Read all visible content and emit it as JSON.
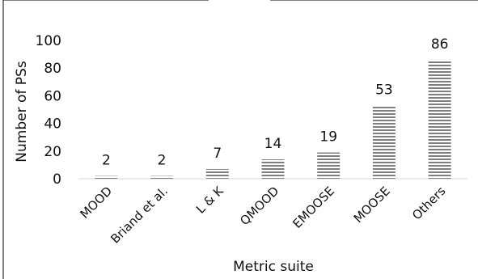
{
  "chart_data": {
    "type": "bar",
    "title": "",
    "xlabel": "Metric suite",
    "ylabel": "Number of PSs",
    "categories": [
      "MOOD",
      "Briand et al.",
      "L & K",
      "QMOOD",
      "EMOOSE",
      "MOOSE",
      "Others"
    ],
    "values": [
      2,
      2,
      7,
      14,
      19,
      53,
      86
    ],
    "data_labels": [
      "2",
      "2",
      "7",
      "14",
      "19",
      "53",
      "86"
    ],
    "y_ticks": [
      "0",
      "20",
      "40",
      "60",
      "80",
      "100"
    ],
    "ylim": [
      0,
      100
    ],
    "grid": false,
    "legend": "none",
    "bar_fill": "hatched-horizontal",
    "colors": {
      "bar_stripe": "#7f7f7f",
      "bar_bg": "#ffffff",
      "axis": "#d9d9d9",
      "text": "#111111"
    }
  }
}
